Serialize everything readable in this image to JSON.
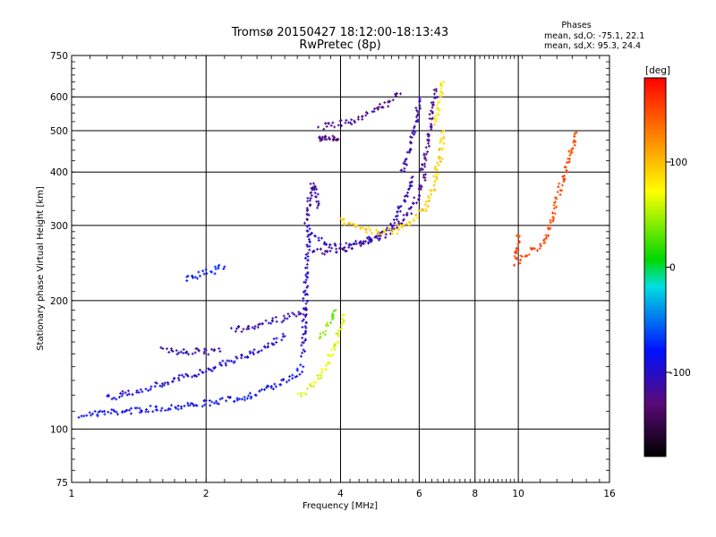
{
  "chart_data": {
    "type": "scatter",
    "title": "Tromsø 20150427 18:12:00-18:13:43",
    "subtitle": "RwPretec (8p)",
    "xlabel": "Frequency [MHz]",
    "ylabel": "Stationary phase Virtual Height [km]",
    "x_scale": "log",
    "y_scale": "log",
    "xlim": [
      1,
      16
    ],
    "ylim": [
      75,
      750
    ],
    "x_ticks": [
      1,
      2,
      4,
      6,
      8,
      10,
      16
    ],
    "y_ticks": [
      75,
      100,
      200,
      300,
      400,
      500,
      600,
      750
    ],
    "grid": true,
    "legend": {
      "title": "Phases",
      "lines": [
        "mean, sd,O: -75.1, 22.1",
        "mean, sd,X:  95.3, 24.4"
      ]
    },
    "colorbar": {
      "label": "[deg]",
      "range": [
        -180,
        180
      ],
      "ticks": [
        100,
        0,
        -100
      ]
    },
    "traces": [
      {
        "x": [
          1.05,
          1.3,
          1.6,
          2.0,
          2.4,
          2.8,
          3.1,
          3.3
        ],
        "y": [
          108,
          110,
          112,
          115,
          118,
          125,
          132,
          140
        ],
        "phase": -88
      },
      {
        "x": [
          1.2,
          1.5,
          1.9,
          2.3,
          2.7,
          3.0
        ],
        "y": [
          118,
          125,
          135,
          145,
          155,
          165
        ],
        "phase": -95
      },
      {
        "x": [
          1.6,
          1.75,
          1.95,
          2.15
        ],
        "y": [
          153,
          152,
          152,
          152
        ],
        "phase": -110
      },
      {
        "x": [
          2.3,
          2.6,
          2.9,
          3.2,
          3.35
        ],
        "y": [
          170,
          175,
          180,
          185,
          190
        ],
        "phase": -105
      },
      {
        "x": [
          3.3,
          3.32,
          3.35,
          3.38,
          3.4
        ],
        "y": [
          150,
          180,
          220,
          260,
          300
        ],
        "phase": -102
      },
      {
        "x": [
          3.35,
          3.4,
          3.45,
          3.5,
          3.55
        ],
        "y": [
          305,
          345,
          372,
          368,
          330
        ],
        "phase": -115
      },
      {
        "x": [
          3.45,
          3.7,
          4.0,
          4.5,
          5.0,
          5.5,
          5.8,
          6.0,
          6.2
        ],
        "y": [
          263,
          260,
          262,
          272,
          285,
          305,
          330,
          360,
          395
        ],
        "phase": -118
      },
      {
        "x": [
          3.4,
          3.7,
          4.0,
          4.5,
          5.0,
          5.3,
          5.5,
          5.8
        ],
        "y": [
          285,
          272,
          268,
          275,
          290,
          310,
          335,
          390
        ],
        "phase": -108
      },
      {
        "x": [
          5.5,
          5.7,
          5.9,
          6.0
        ],
        "y": [
          400,
          450,
          520,
          600
        ],
        "phase": -112
      },
      {
        "x": [
          6.1,
          6.25,
          6.4,
          6.55
        ],
        "y": [
          400,
          460,
          550,
          625
        ],
        "phase": -118
      },
      {
        "x": [
          3.6,
          3.9,
          4.2,
          4.55,
          4.9,
          5.2,
          5.45
        ],
        "y": [
          512,
          516,
          525,
          545,
          565,
          588,
          610
        ],
        "phase": -122
      },
      {
        "x": [
          3.58,
          3.65,
          3.75,
          3.85,
          3.95
        ],
        "y": [
          478,
          478,
          478,
          478,
          478
        ],
        "phase": -130
      },
      {
        "x": [
          3.25,
          3.5,
          3.7,
          3.9,
          4.05
        ],
        "y": [
          120,
          128,
          140,
          158,
          185
        ],
        "phase": 62
      },
      {
        "x": [
          3.6,
          3.75,
          3.9
        ],
        "y": [
          165,
          175,
          190
        ],
        "phase": 35
      },
      {
        "x": [
          4.0,
          4.3,
          4.6,
          5.0,
          5.4
        ],
        "y": [
          310,
          300,
          292,
          288,
          293
        ],
        "phase": 92
      },
      {
        "x": [
          5.4,
          5.8,
          6.2,
          6.5,
          6.7,
          6.8
        ],
        "y": [
          295,
          310,
          330,
          380,
          440,
          500
        ],
        "phase": 90
      },
      {
        "x": [
          6.5,
          6.6,
          6.7,
          6.8
        ],
        "y": [
          520,
          560,
          600,
          650
        ],
        "phase": 78
      },
      {
        "x": [
          1.8,
          2.0,
          2.2
        ],
        "y": [
          225,
          232,
          240
        ],
        "phase": -80
      },
      {
        "x": [
          10.0,
          9.9,
          11.5,
          13.5
        ],
        "y": [
          285,
          245,
          275,
          495
        ],
        "phase": 150
      }
    ]
  }
}
